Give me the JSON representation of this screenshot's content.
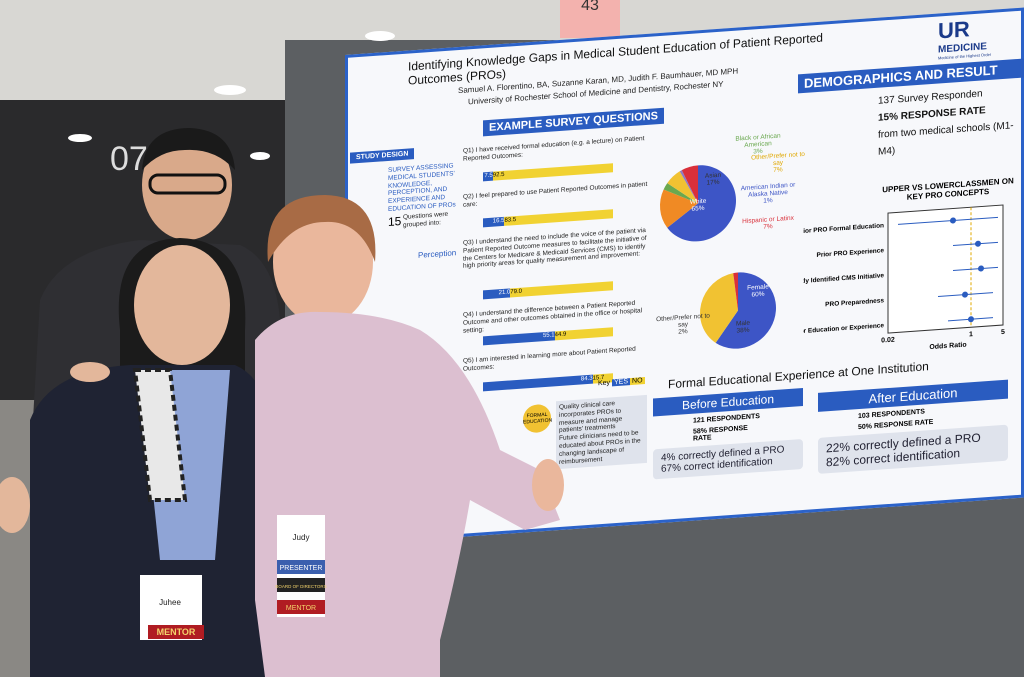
{
  "sign": "43",
  "wall_number": "07",
  "poster": {
    "title": "Identifying Knowledge Gaps in Medical Student Education of Patient Reported Outcomes (PROs)",
    "authors": "Samuel A. Florentino, BA, Suzanne Karan, MD, Judith F. Baumhauer, MD MPH",
    "affiliation": "University of Rochester School of Medicine and Dentistry, Rochester NY",
    "logo": {
      "name": "UR",
      "sub": "MEDICINE",
      "tagline": "Medicine of the Highest Order"
    },
    "study_design": {
      "heading": "STUDY DESIGN",
      "text": "SURVEY ASSESSING MEDICAL STUDENTS' KNOWLEDGE, PERCEPTION, AND EXPERIENCE AND EDUCATION OF PROs",
      "count": "15",
      "grouped": "Questions were grouped into:",
      "category": "Perception"
    },
    "survey": {
      "heading": "EXAMPLE SURVEY QUESTIONS",
      "questions": [
        {
          "text": "Q1) I have received formal education (e.g. a lecture) on Patient Reported Outcomes:",
          "yes": "7.5",
          "no": "92.5"
        },
        {
          "text": "Q2) I feel prepared to use Patient Reported Outcomes in patient care:",
          "yes": "16.5",
          "no": "83.5"
        },
        {
          "text": "Q3) I understand the need to include the voice of the patient via Patient Reported Outcome measures to facilitate the initiative of the Centers for Medicare & Medicaid Services (CMS) to identify high priority areas for quality measurement and improvement:",
          "yes": "21.0",
          "no": "79.0"
        },
        {
          "text": "Q4) I understand the difference between a Patient Reported Outcome and other outcomes obtained in the office or hospital setting:",
          "yes": "55.1",
          "no": "44.9"
        },
        {
          "text": "Q5) I am interested in learning more about Patient Reported Outcomes:",
          "yes": "84.3",
          "no": "15.7"
        }
      ],
      "key": {
        "label": "Key",
        "yes": "YES",
        "no": "NO"
      }
    },
    "race": [
      {
        "label": "White",
        "value": "65%",
        "color": "#3d55c6"
      },
      {
        "label": "Asian",
        "value": "17%",
        "color": "#f08a24"
      },
      {
        "label": "Black or African American",
        "value": "3%",
        "color": "#6aa84f"
      },
      {
        "label": "Other/Prefer not to say",
        "value": "7%",
        "color": "#f1c232"
      },
      {
        "label": "American Indian or Alaska Native",
        "value": "1%",
        "color": "#8e7cc3"
      },
      {
        "label": "Hispanic or Latinx",
        "value": "7%",
        "color": "#d9303a"
      }
    ],
    "gender": [
      {
        "label": "Female",
        "value": "60%",
        "color": "#3d55c6"
      },
      {
        "label": "Male",
        "value": "38%",
        "color": "#f1c232"
      },
      {
        "label": "Other/Prefer not to say",
        "value": "2%",
        "color": "#d9303a"
      }
    ],
    "results": {
      "heading": "DEMOGRAPHICS AND RESULT",
      "respondents": "137 Survey Responden",
      "rate": "15% RESPONSE RATE",
      "source": "from two medical schools (M1-M4)"
    },
    "forest": {
      "title": "UPPER VS LOWERCLASSMEN ON KEY PRO CONCEPTS",
      "rows": [
        "Prior PRO Formal Education",
        "Prior PRO Experience",
        "Correctly Identified CMS Initiative",
        "PRO Preparedness",
        "Prior Education or Experience"
      ],
      "ticks": [
        "0.02",
        "1",
        "5"
      ],
      "axis_label": "Odds Ratio"
    },
    "formal": {
      "heading": "Formal Educational Experience at One Institution",
      "before": {
        "label": "Before Education",
        "respondents": "121 RESPONDENTS",
        "rate": "58% RESPONSE RATE",
        "defined": "4% correctly defined a PRO",
        "identified": "67% correct identification"
      },
      "after": {
        "label": "After Education",
        "respondents": "103 RESPONDENTS",
        "rate": "50% RESPONSE RATE",
        "defined": "22% correctly defined a PRO",
        "identified": "82% correct identification"
      }
    },
    "conclusion": {
      "label": "FORMAL EDUCATION",
      "points": [
        "Quality clinical care incorporates PROs to measure and manage patients' treatments",
        "Future clinicians need to be educated about PROs in the changing landscape of reimbursement"
      ]
    }
  },
  "badges": {
    "left": {
      "name": "Juhee",
      "role": "MENTOR"
    },
    "right": {
      "name": "Judy",
      "ribbons": [
        "PRESENTER",
        "BOARD OF DIRECTORS",
        "MENTOR"
      ]
    }
  }
}
